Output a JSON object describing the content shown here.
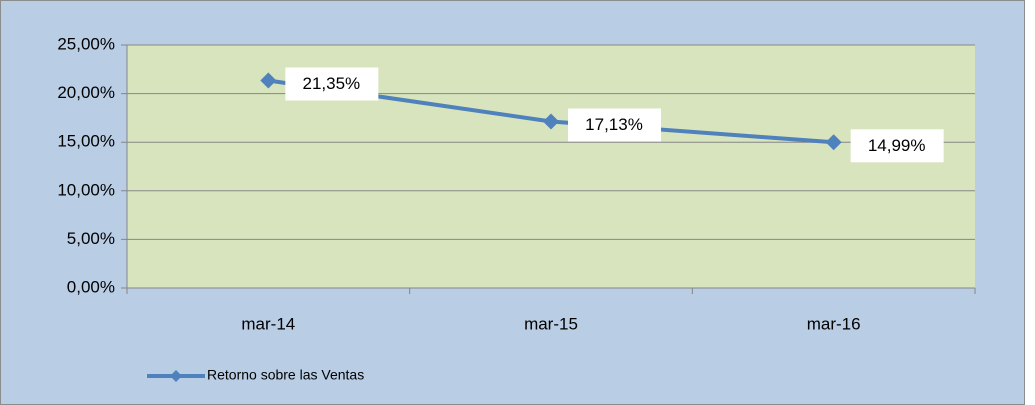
{
  "chart_data": {
    "type": "line",
    "categories": [
      "mar-14",
      "mar-15",
      "mar-16"
    ],
    "series": [
      {
        "name": "Retorno sobre las Ventas",
        "color": "#4f81bd",
        "values": [
          21.35,
          17.13,
          14.99
        ],
        "value_labels": [
          "21,35%",
          "17,13%",
          "14,99%"
        ]
      }
    ],
    "ylim": [
      0,
      25
    ],
    "yticks": [
      {
        "value": 0,
        "label": "0,00%"
      },
      {
        "value": 5,
        "label": "5,00%"
      },
      {
        "value": 10,
        "label": "10,00%"
      },
      {
        "value": 15,
        "label": "15,00%"
      },
      {
        "value": 20,
        "label": "20,00%"
      },
      {
        "value": 25,
        "label": "25,00%"
      }
    ],
    "grid": true,
    "legend": "bottom"
  }
}
